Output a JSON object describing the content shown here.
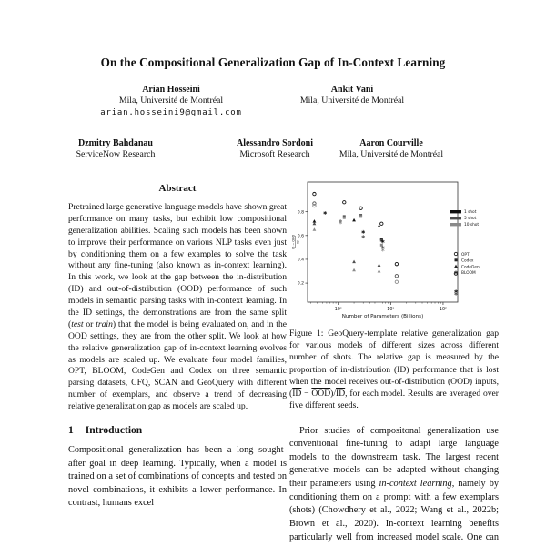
{
  "page": {
    "title": "On the Compositional Generalization Gap of In-Context Learning",
    "authors_row1": [
      {
        "name": "Arian Hosseini",
        "affiliation": "Mila, Université de Montréal",
        "email": "arian.hosseini9@gmail.com"
      },
      {
        "name": "Ankit Vani",
        "affiliation": "Mila, Université de Montréal",
        "email": ""
      }
    ],
    "authors_row2": [
      {
        "name": "Dzmitry Bahdanau",
        "affiliation": "ServiceNow Research"
      },
      {
        "name": "Alessandro Sordoni",
        "affiliation": "Microsoft Research"
      },
      {
        "name": "Aaron Courville",
        "affiliation": "Mila, Université de Montréal"
      }
    ],
    "abstract": {
      "heading": "Abstract",
      "text": "Pretrained large generative language models have shown great performance on many tasks, but exhibit low compositional generalization abilities. Scaling such models has been shown to improve their performance on various NLP tasks even just by conditioning them on a few examples to solve the task without any fine-tuning (also known as in-context learning). In this work, we look at the gap between the in-distribution (ID) and out-of-distribution (OOD) performance of such models in semantic parsing tasks with in-context learning. In the ID settings, the demonstrations are from the same split (*test* or *train*) that the model is being evaluated on, and in the OOD settings, they are from the other split. We look at how the relative generalization gap of in-context learning evolves as models are scaled up. We evaluate four model families, OPT, BLOOM, CodeGen and Codex on three semantic parsing datasets, CFQ, SCAN and GeoQuery with different number of exemplars, and observe a trend of decreasing relative generalization gap as models are scaled up."
    },
    "section1": {
      "number": "1",
      "heading": "Introduction",
      "text": "Compositional generalization has been a long sought-after goal in deep learning. Typically, when a model is trained on a set of combinations of concepts and tested on novel combinations, it exhibits a lower performance. In contrast, humans excel"
    },
    "figure": {
      "caption": "Figure 1: GeoQuery-template relative generalization gap for various models of different sizes across different number of shots. The relative gap is measured by the proportion of in-distribution (ID) performance that is lost when the model receives out-of-distribution (OOD) inputs, (~ID~ − ~OOD~)/~ID~, for each model. Results are averaged over five different seeds."
    },
    "right_paragraph": "Prior studies of compositonal generalization use conventional fine-tuning to adapt large language models to the downstream task. The largest recent generative models can be adapted without changing their parameters using *in-context learning*, namely by conditioning them on a prompt with a few exemplars (shots) (Chowdhery et al., 2022; Wang et al., 2022b; Brown et al., 2020). In-context learning benefits particularly well from increased model scale. One can thus wonder whether scaling lan-"
  },
  "chart_data": {
    "type": "scatter",
    "title": "",
    "xlabel": "Number of Parameters (Billions)",
    "ylabel": "(ID − OOD) / ID",
    "ylabel_numerator": "ID − OOD",
    "ylabel_denominator": "ID",
    "x_scale": "log",
    "xlim": [
      0.26,
      190
    ],
    "ylim": [
      0.04,
      1.05
    ],
    "x_ticks": [
      {
        "value": 1,
        "label": "10⁰"
      },
      {
        "value": 10,
        "label": "10¹"
      },
      {
        "value": 100,
        "label": "10²"
      }
    ],
    "y_ticks": [
      0.2,
      0.4,
      0.6,
      0.8
    ],
    "legend_shots": [
      {
        "label": "1 shot",
        "color": "#111111"
      },
      {
        "label": "5 shot",
        "color": "#4f4f4f"
      },
      {
        "label": "10 shot",
        "color": "#8a8a8a"
      }
    ],
    "legend_models": [
      {
        "label": "OPT",
        "marker": "circle"
      },
      {
        "label": "Codex",
        "marker": "square"
      },
      {
        "label": "CodeGen",
        "marker": "triangle"
      },
      {
        "label": "BLOOM",
        "marker": "star"
      }
    ],
    "points": [
      {
        "model": "OPT",
        "marker": "circle",
        "shot": 1,
        "x": 0.35,
        "y": 0.95
      },
      {
        "model": "OPT",
        "marker": "circle",
        "shot": 5,
        "x": 0.35,
        "y": 0.87
      },
      {
        "model": "OPT",
        "marker": "circle",
        "shot": 10,
        "x": 0.35,
        "y": 0.85
      },
      {
        "model": "OPT",
        "marker": "circle",
        "shot": 1,
        "x": 1.3,
        "y": 0.88
      },
      {
        "model": "OPT",
        "marker": "circle",
        "shot": 1,
        "x": 2.7,
        "y": 0.83
      },
      {
        "model": "OPT",
        "marker": "circle",
        "shot": 1,
        "x": 6.7,
        "y": 0.7
      },
      {
        "model": "OPT",
        "marker": "circle",
        "shot": 1,
        "x": 13,
        "y": 0.36
      },
      {
        "model": "OPT",
        "marker": "circle",
        "shot": 5,
        "x": 13,
        "y": 0.26
      },
      {
        "model": "OPT",
        "marker": "circle",
        "shot": 10,
        "x": 13,
        "y": 0.21
      },
      {
        "model": "OPT",
        "marker": "circle",
        "shot": 1,
        "x": 175,
        "y": 0.28
      },
      {
        "model": "Codex",
        "marker": "square",
        "shot": 5,
        "x": 1.3,
        "y": 0.76
      },
      {
        "model": "Codex",
        "marker": "square",
        "shot": 10,
        "x": 1.3,
        "y": 0.75
      },
      {
        "model": "Codex",
        "marker": "square",
        "shot": 5,
        "x": 2.7,
        "y": 0.77
      },
      {
        "model": "Codex",
        "marker": "square",
        "shot": 10,
        "x": 2.7,
        "y": 0.76
      },
      {
        "model": "Codex",
        "marker": "square",
        "shot": 1,
        "x": 6.7,
        "y": 0.57
      },
      {
        "model": "Codex",
        "marker": "square",
        "shot": 5,
        "x": 6.7,
        "y": 0.56
      },
      {
        "model": "Codex",
        "marker": "square",
        "shot": 10,
        "x": 6.7,
        "y": 0.52
      },
      {
        "model": "CodeGen",
        "marker": "triangle",
        "shot": 1,
        "x": 0.35,
        "y": 0.72
      },
      {
        "model": "CodeGen",
        "marker": "triangle",
        "shot": 5,
        "x": 0.35,
        "y": 0.7
      },
      {
        "model": "CodeGen",
        "marker": "triangle",
        "shot": 10,
        "x": 0.35,
        "y": 0.65
      },
      {
        "model": "CodeGen",
        "marker": "triangle",
        "shot": 1,
        "x": 2.0,
        "y": 0.73
      },
      {
        "model": "CodeGen",
        "marker": "triangle",
        "shot": 5,
        "x": 2.0,
        "y": 0.38
      },
      {
        "model": "CodeGen",
        "marker": "triangle",
        "shot": 10,
        "x": 2.0,
        "y": 0.31
      },
      {
        "model": "CodeGen",
        "marker": "triangle",
        "shot": 1,
        "x": 6.0,
        "y": 0.68
      },
      {
        "model": "CodeGen",
        "marker": "triangle",
        "shot": 5,
        "x": 6.0,
        "y": 0.35
      },
      {
        "model": "CodeGen",
        "marker": "triangle",
        "shot": 10,
        "x": 6.0,
        "y": 0.3
      },
      {
        "model": "BLOOM",
        "marker": "star",
        "shot": 1,
        "x": 0.56,
        "y": 0.79
      },
      {
        "model": "BLOOM",
        "marker": "star",
        "shot": 5,
        "x": 1.1,
        "y": 0.72
      },
      {
        "model": "BLOOM",
        "marker": "star",
        "shot": 10,
        "x": 1.1,
        "y": 0.71
      },
      {
        "model": "BLOOM",
        "marker": "star",
        "shot": 1,
        "x": 3.0,
        "y": 0.63
      },
      {
        "model": "BLOOM",
        "marker": "star",
        "shot": 5,
        "x": 3.0,
        "y": 0.59
      },
      {
        "model": "BLOOM",
        "marker": "star",
        "shot": 1,
        "x": 7.1,
        "y": 0.55
      },
      {
        "model": "BLOOM",
        "marker": "star",
        "shot": 5,
        "x": 7.1,
        "y": 0.5
      },
      {
        "model": "BLOOM",
        "marker": "star",
        "shot": 10,
        "x": 7.1,
        "y": 0.48
      },
      {
        "model": "BLOOM",
        "marker": "star",
        "shot": 1,
        "x": 176,
        "y": 0.13
      },
      {
        "model": "BLOOM",
        "marker": "star",
        "shot": 5,
        "x": 176,
        "y": 0.11
      }
    ]
  }
}
